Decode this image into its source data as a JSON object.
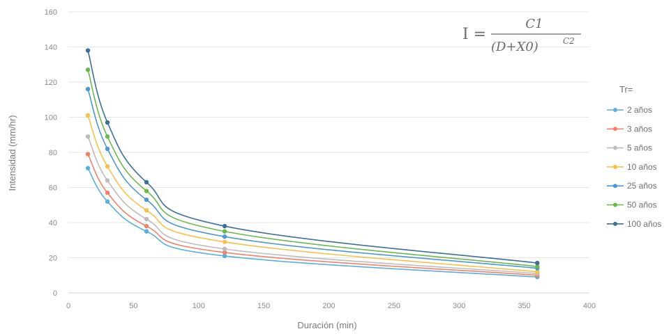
{
  "chart_data": {
    "type": "line",
    "xlabel": "Duración (min)",
    "ylabel": "Intensidad (mm/hr)",
    "xlim": [
      0,
      400
    ],
    "ylim": [
      0,
      160
    ],
    "xticks": [
      0,
      50,
      100,
      150,
      200,
      250,
      300,
      350,
      400
    ],
    "yticks": [
      0,
      20,
      40,
      60,
      80,
      100,
      120,
      140,
      160
    ],
    "grid": "horizontal",
    "legend_placement": "right",
    "legend_title": "Tr=",
    "formula": {
      "lhs": "I =",
      "numerator": "C1",
      "denominator": "(D+X0)",
      "exponent": "C2"
    },
    "x": [
      15,
      30,
      60,
      120,
      360
    ],
    "series": [
      {
        "name": "2 años",
        "color": "#5aaedc",
        "values": [
          71,
          52,
          35,
          21,
          9
        ]
      },
      {
        "name": "3 años",
        "color": "#f0826a",
        "values": [
          79,
          57,
          38,
          23,
          10
        ]
      },
      {
        "name": "5 años",
        "color": "#bdbdbd",
        "values": [
          89,
          64,
          42,
          25,
          11
        ]
      },
      {
        "name": "10 años",
        "color": "#f7c04a",
        "values": [
          101,
          72,
          47,
          29,
          12
        ]
      },
      {
        "name": "25 años",
        "color": "#4f97d3",
        "values": [
          116,
          82,
          53,
          32,
          14
        ]
      },
      {
        "name": "50 años",
        "color": "#6cb84a",
        "values": [
          127,
          89,
          58,
          35,
          15
        ]
      },
      {
        "name": "100 años",
        "color": "#3d6f99",
        "values": [
          138,
          97,
          63,
          38,
          17
        ]
      }
    ]
  }
}
